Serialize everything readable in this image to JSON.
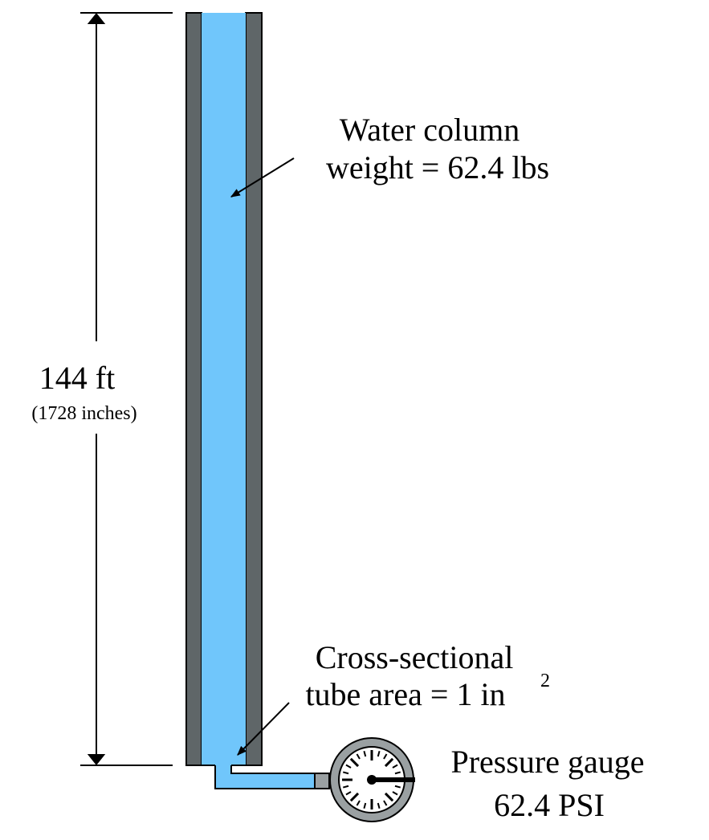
{
  "height": {
    "main": "144 ft",
    "sub": "(1728 inches)"
  },
  "water": {
    "line1": "Water column",
    "line2": "weight = 62.4 lbs"
  },
  "area": {
    "line1": "Cross-sectional",
    "line2": "tube area = 1 in",
    "exponent": "2"
  },
  "gauge": {
    "name": "Pressure gauge",
    "reading": "62.4 PSI"
  }
}
